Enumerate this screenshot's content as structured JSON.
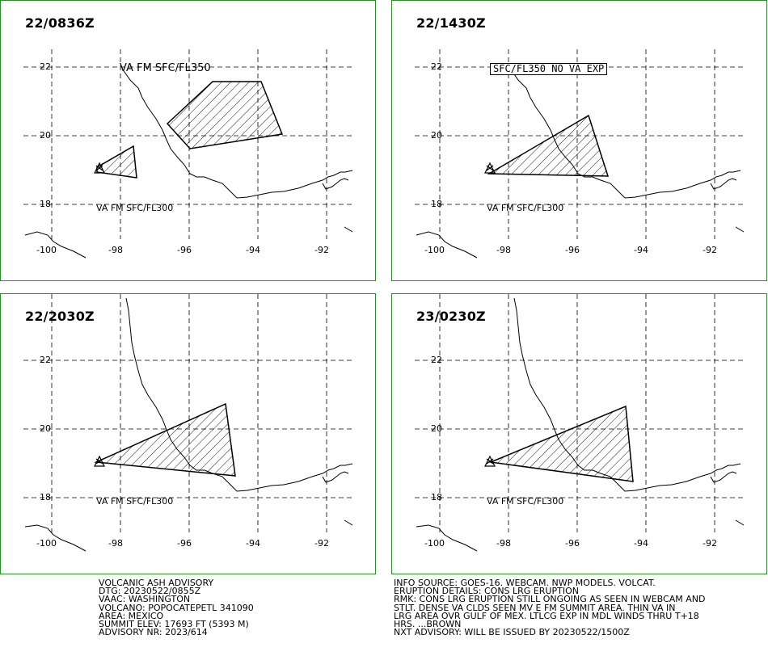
{
  "panels": [
    {
      "title": "22/0836Z",
      "label_top": "VA FM SFC/FL350",
      "label_top_boxed": false,
      "label_bottom": "VA FM SFC/FL300"
    },
    {
      "title": "22/1430Z",
      "label_top": "SFC/FL350 NO VA EXP",
      "label_top_boxed": true,
      "label_bottom": "VA FM SFC/FL300"
    },
    {
      "title": "22/2030Z",
      "label_top": "",
      "label_top_boxed": false,
      "label_bottom": "VA FM SFC/FL300"
    },
    {
      "title": "23/0230Z",
      "label_top": "",
      "label_top_boxed": false,
      "label_bottom": "VA FM SFC/FL300"
    }
  ],
  "axes": {
    "lat_labels": [
      "22",
      "20",
      "18"
    ],
    "lon_labels": [
      "-100",
      "-98",
      "-96",
      "-94",
      "-92"
    ]
  },
  "advisory_left": [
    "VOLCANIC ASH ADVISORY",
    "DTG: 20230522/0855Z",
    "VAAC: WASHINGTON",
    "VOLCANO: POPOCATEPETL 341090",
    "AREA: MEXICO",
    "SUMMIT ELEV: 17693 FT (5393 M)",
    "ADVISORY NR: 2023/614"
  ],
  "advisory_right": [
    "INFO SOURCE: GOES-16. WEBCAM. NWP MODELS. VOLCAT.",
    "ERUPTION DETAILS: CONS LRG ERUPTION",
    "RMK: CONS LRG ERUPTION STILL ONGOING AS SEEN IN WEBCAM AND",
    "STLT. DENSE VA CLDS SEEN MV E FM SUMMIT AREA. THIN VA IN",
    "LRG AREA OVR GULF OF MEX. LTLCG EXP IN MDL WINDS THRU T+18",
    "HRS. ...BROWN",
    "NXT ADVISORY: WILL BE ISSUED BY 20230522/1500Z"
  ],
  "colors": {
    "frame": "#2e8b2e",
    "ink": "#000000"
  }
}
